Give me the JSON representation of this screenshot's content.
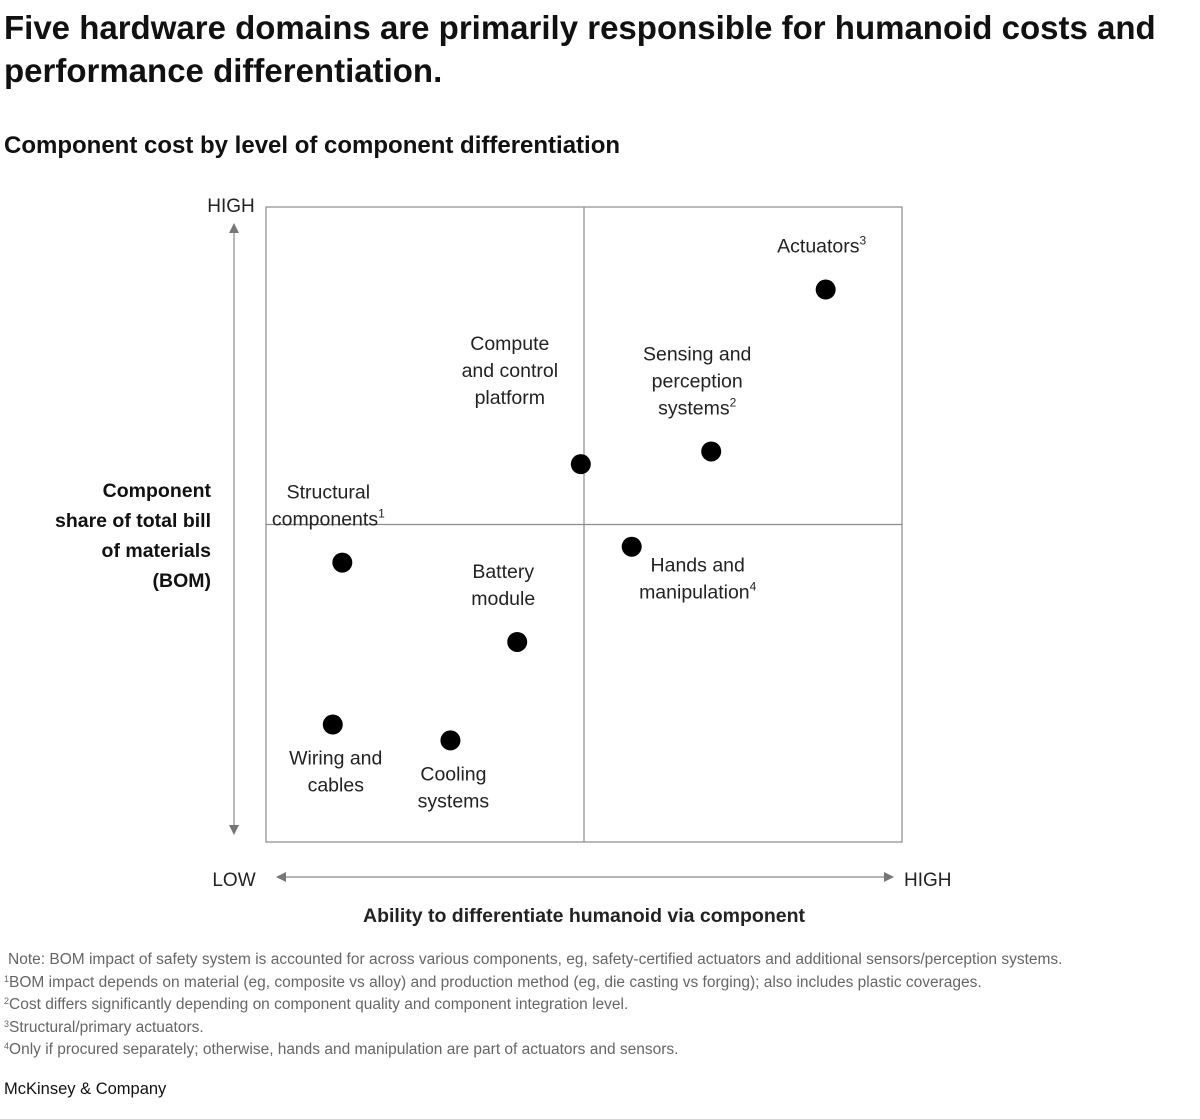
{
  "title": "Five hardware domains are primarily responsible for humanoid costs and performance differentiation.",
  "subtitle": "Component cost by level of component differentiation",
  "chart_data": {
    "type": "scatter",
    "xlabel": "Ability to differentiate humanoid via component",
    "ylabel": [
      "Component",
      "share of total bill",
      "of materials",
      "(BOM)"
    ],
    "x_tick_low": "LOW",
    "x_tick_high": "HIGH",
    "y_tick_high": "HIGH",
    "xlim": [
      0,
      1
    ],
    "ylim": [
      0,
      1
    ],
    "quadrant_split": 0.5,
    "grid": "quadrants",
    "marker_color": "#000000",
    "points": [
      {
        "label": [
          "Actuators"
        ],
        "sup": "3",
        "x": 0.88,
        "y": 0.87,
        "label_pos": "above"
      },
      {
        "label": [
          "Sensing and",
          "perception",
          "systems"
        ],
        "sup": "2",
        "x": 0.7,
        "y": 0.615,
        "label_pos": "above"
      },
      {
        "label": [
          "Compute",
          "and control",
          "platform"
        ],
        "sup": "",
        "x": 0.495,
        "y": 0.595,
        "label_pos": "above-left"
      },
      {
        "label": [
          "Structural",
          "components"
        ],
        "sup": "1",
        "x": 0.12,
        "y": 0.44,
        "label_pos": "above"
      },
      {
        "label": [
          "Hands and",
          "manipulation"
        ],
        "sup": "4",
        "x": 0.575,
        "y": 0.465,
        "label_pos": "below-right"
      },
      {
        "label": [
          "Battery",
          "module"
        ],
        "sup": "",
        "x": 0.395,
        "y": 0.315,
        "label_pos": "above"
      },
      {
        "label": [
          "Wiring and",
          "cables"
        ],
        "sup": "",
        "x": 0.105,
        "y": 0.185,
        "label_pos": "below"
      },
      {
        "label": [
          "Cooling",
          "systems"
        ],
        "sup": "",
        "x": 0.29,
        "y": 0.16,
        "label_pos": "below"
      }
    ]
  },
  "notes": [
    {
      "sup": "",
      "text": "Note: BOM impact of safety system is accounted for across various components, eg, safety-certified actuators and additional sensors/perception systems."
    },
    {
      "sup": "1",
      "text": "BOM impact depends on material (eg, composite vs alloy) and production method (eg, die casting vs forging); also includes plastic coverages."
    },
    {
      "sup": "2",
      "text": "Cost differs significantly depending on component quality and component integration level."
    },
    {
      "sup": "3",
      "text": "Structural/primary actuators."
    },
    {
      "sup": "4",
      "text": "Only if procured separately; otherwise, hands and manipulation are part of actuators and sensors."
    }
  ],
  "brand": "McKinsey & Company"
}
